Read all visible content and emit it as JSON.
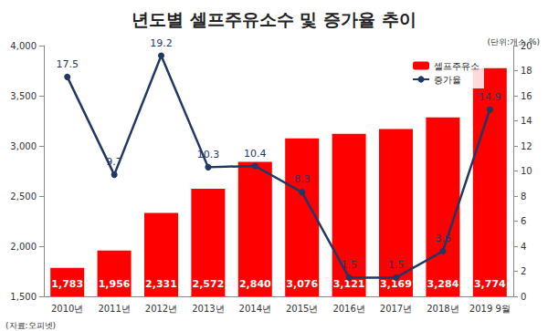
{
  "chart_data": {
    "type": "bar",
    "title": "년도별 셀프주유소수 및 증가율 추이",
    "subtitle": "(단위:개소,%)",
    "annotations": [
      "(자료:오피넷)"
    ],
    "categories": [
      "2010년",
      "2011년",
      "2012년",
      "2013년",
      "2014년",
      "2015년",
      "2016년",
      "2017년",
      "2018년",
      "2019 9월"
    ],
    "series": [
      {
        "name": "셀프주유소",
        "type": "bar",
        "color": "#ff0000",
        "values": [
          1783,
          1956,
          2331,
          2572,
          2840,
          3076,
          3121,
          3169,
          3284,
          3774
        ],
        "value_labels": [
          "1,783",
          "1,956",
          "2,331",
          "2,572",
          "2,840",
          "3,076",
          "3,121",
          "3,169",
          "3,284",
          "3,774"
        ]
      },
      {
        "name": "증가율",
        "type": "line",
        "color": "#1f3864",
        "axis": "y2",
        "marker": "circle",
        "values": [
          17.5,
          9.7,
          19.2,
          10.3,
          10.4,
          8.3,
          1.5,
          1.5,
          3.6,
          14.9
        ]
      }
    ],
    "ylim": [
      1500,
      4000
    ],
    "yticks": [
      1500,
      2000,
      2500,
      3000,
      3500,
      4000
    ],
    "y2lim": [
      0,
      20
    ],
    "y2ticks": [
      0,
      2,
      4,
      6,
      8,
      10,
      12,
      14,
      16,
      18,
      20
    ],
    "grid": false,
    "legend": "upper right",
    "data_labels": true
  }
}
